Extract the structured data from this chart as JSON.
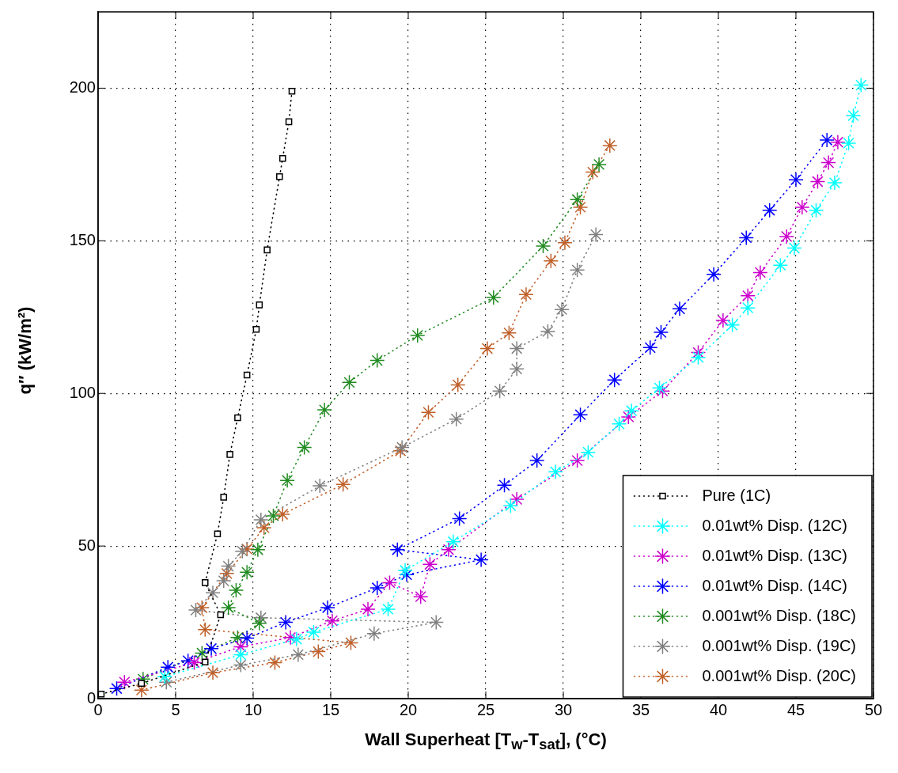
{
  "chart_data": {
    "type": "line",
    "xlabel": "Wall Superheat [T$_{w}$-T$_{sat}$], (°C)",
    "ylabel": "q″ (kW/m²)",
    "xlim": [
      0,
      50
    ],
    "xticks": [
      0,
      5,
      10,
      15,
      20,
      25,
      30,
      35,
      40,
      45,
      50
    ],
    "ylim": [
      0,
      225
    ],
    "yticks": [
      0,
      50,
      100,
      150,
      200
    ],
    "grid": true,
    "legend": "bottom right",
    "line_style": "dotted",
    "series": [
      {
        "name": "Pure (1C)",
        "color": "#000000",
        "marker": "square",
        "x": [
          0.2,
          2.8,
          6.9,
          7.9,
          6.9,
          7.7,
          8.1,
          8.5,
          9.0,
          9.6,
          10.2,
          10.4,
          10.9,
          11.7,
          11.9,
          12.3,
          12.5
        ],
        "values": [
          1.5,
          5,
          12,
          27.5,
          38,
          54,
          66,
          80,
          92,
          106,
          121,
          129,
          147,
          171,
          177,
          189,
          199
        ]
      },
      {
        "name": "0.01wt% Disp. (12C)",
        "color": "#00ffff",
        "marker": "cross",
        "x": [
          4.3,
          9.2,
          12.8,
          13.9,
          18.7,
          19.8,
          22.9,
          26.6,
          29.5,
          31.6,
          33.6,
          34.4,
          36.2,
          38.7,
          40.9,
          41.9,
          44.0,
          44.9,
          46.3,
          47.5,
          48.4,
          48.7,
          49.2
        ],
        "values": [
          7.2,
          14.4,
          19.5,
          21.8,
          29.3,
          42,
          51.4,
          63.2,
          74.3,
          80.7,
          90,
          94.3,
          101.8,
          111.8,
          122.4,
          128,
          142,
          147.6,
          160,
          169,
          182,
          191,
          201
        ]
      },
      {
        "name": "0.01wt% Disp. (13C)",
        "color": "#cc00cc",
        "marker": "cross",
        "x": [
          1.7,
          6.2,
          9.2,
          12.4,
          15.1,
          17.4,
          18.8,
          20.8,
          21.4,
          22.6,
          27.0,
          30.9,
          34.2,
          36.4,
          38.7,
          40.3,
          41.9,
          42.7,
          44.4,
          45.4,
          46.4,
          47.1,
          47.7
        ],
        "values": [
          5.4,
          11.8,
          17,
          20,
          25.5,
          29.3,
          38,
          33.4,
          44,
          48.8,
          65.3,
          78,
          92.3,
          100.8,
          113.4,
          123.9,
          132,
          139.6,
          151.4,
          161,
          169.4,
          175.6,
          182.3
        ]
      },
      {
        "name": "0.01wt% Disp. (14C)",
        "color": "#0000ff",
        "marker": "cross",
        "x": [
          1.2,
          4.5,
          5.8,
          7.3,
          9.6,
          12.1,
          14.8,
          18.0,
          19.9,
          24.7,
          19.3,
          23.3,
          26.2,
          28.3,
          31.1,
          33.3,
          35.6,
          36.3,
          37.5,
          39.7,
          41.8,
          43.3,
          45.0,
          47.0
        ],
        "values": [
          3.3,
          10.3,
          12.4,
          16.4,
          19.8,
          25,
          29.8,
          36.3,
          40.6,
          45.5,
          48.8,
          59,
          69.9,
          78,
          93,
          104.4,
          115,
          120,
          127.7,
          139,
          151,
          160,
          170,
          183
        ]
      },
      {
        "name": "0.001wt% Disp. (18C)",
        "color": "#228b22",
        "marker": "cross",
        "x": [
          2.9,
          6.7,
          9.0,
          10.4,
          8.4,
          8.9,
          9.6,
          10.3,
          11.3,
          12.2,
          13.3,
          14.6,
          16.2,
          18.0,
          20.6,
          25.5,
          28.7,
          30.9,
          32.3
        ],
        "values": [
          6.4,
          14.9,
          20,
          24.7,
          29.8,
          35.5,
          41.4,
          48.8,
          59.9,
          71.5,
          82.3,
          94.6,
          103.6,
          110.8,
          119,
          131.4,
          148.3,
          163.5,
          175
        ]
      },
      {
        "name": "0.001wt% Disp. (19C)",
        "color": "#808080",
        "marker": "cross",
        "x": [
          4.4,
          9.2,
          12.9,
          17.8,
          21.8,
          10.5,
          6.3,
          7.4,
          8.1,
          8.4,
          9.3,
          10.5,
          14.3,
          19.6,
          23.1,
          25.9,
          27.0,
          27.0,
          29.0,
          29.9,
          30.9,
          32.1
        ],
        "values": [
          5.4,
          11,
          14.4,
          21.3,
          25,
          26.5,
          29,
          34.7,
          38.6,
          43.4,
          48.3,
          58.6,
          69.7,
          82.3,
          91.6,
          100.8,
          108,
          114.7,
          120.3,
          127.5,
          140.4,
          152
        ]
      },
      {
        "name": "0.001wt% Disp. (20C)",
        "color": "#c0602a",
        "marker": "cross",
        "x": [
          2.8,
          7.4,
          11.4,
          14.2,
          16.3,
          6.9,
          6.7,
          8.3,
          9.6,
          10.7,
          11.9,
          15.8,
          19.5,
          21.3,
          23.2,
          25.1,
          26.5,
          27.6,
          29.2,
          30.1,
          31.1,
          31.9,
          33.0
        ],
        "values": [
          2.8,
          8.5,
          11.8,
          15.4,
          18.3,
          22.6,
          29.8,
          41,
          49,
          56,
          60.4,
          70.2,
          81.2,
          93.8,
          102.8,
          114.7,
          119.8,
          132.4,
          143.4,
          149.4,
          161,
          172.5,
          181.2
        ]
      }
    ]
  }
}
